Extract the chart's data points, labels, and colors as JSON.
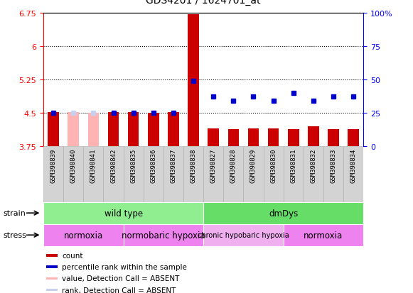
{
  "title": "GDS4201 / 1624701_at",
  "samples": [
    "GSM398839",
    "GSM398840",
    "GSM398841",
    "GSM398842",
    "GSM398835",
    "GSM398836",
    "GSM398837",
    "GSM398838",
    "GSM398827",
    "GSM398828",
    "GSM398829",
    "GSM398830",
    "GSM398831",
    "GSM398832",
    "GSM398833",
    "GSM398834"
  ],
  "count_values": [
    4.52,
    4.51,
    4.5,
    4.52,
    4.51,
    4.5,
    4.52,
    6.72,
    4.15,
    4.13,
    4.15,
    4.15,
    4.14,
    4.19,
    4.14,
    4.14
  ],
  "percentile_values": [
    25,
    25,
    25,
    25,
    25,
    25,
    25,
    49,
    37,
    34,
    37,
    34,
    40,
    34,
    37,
    37
  ],
  "absent_mask": [
    false,
    true,
    true,
    false,
    false,
    false,
    false,
    false,
    false,
    false,
    false,
    false,
    false,
    false,
    false,
    false
  ],
  "ylim_left": [
    3.75,
    6.75
  ],
  "ylim_right": [
    0,
    100
  ],
  "yticks_left": [
    3.75,
    4.5,
    5.25,
    6.0,
    6.75
  ],
  "yticks_right": [
    0,
    25,
    50,
    75,
    100
  ],
  "ytick_labels_left": [
    "3.75",
    "4.5",
    "5.25",
    "6",
    "6.75"
  ],
  "ytick_labels_right": [
    "0",
    "25",
    "50",
    "75",
    "100%"
  ],
  "hlines": [
    4.5,
    5.25,
    6.0
  ],
  "bar_color_present": "#cc0000",
  "bar_color_absent_count": "#ffb3b3",
  "bar_color_absent_rank": "#c8d0f0",
  "dot_color": "#0000cc",
  "strain_groups": [
    {
      "label": "wild type",
      "start": 0,
      "end": 7,
      "color": "#90ee90"
    },
    {
      "label": "dmDys",
      "start": 8,
      "end": 15,
      "color": "#66dd66"
    }
  ],
  "stress_groups": [
    {
      "label": "normoxia",
      "start": 0,
      "end": 3,
      "color": "#ee82ee"
    },
    {
      "label": "normobaric hypoxia",
      "start": 4,
      "end": 7,
      "color": "#ee82ee"
    },
    {
      "label": "chronic hypobaric hypoxia",
      "start": 8,
      "end": 11,
      "color": "#f0b0f0"
    },
    {
      "label": "normoxia",
      "start": 12,
      "end": 15,
      "color": "#ee82ee"
    }
  ],
  "legend_items": [
    {
      "label": "count",
      "color": "#cc0000"
    },
    {
      "label": "percentile rank within the sample",
      "color": "#0000cc"
    },
    {
      "label": "value, Detection Call = ABSENT",
      "color": "#ffb3b3"
    },
    {
      "label": "rank, Detection Call = ABSENT",
      "color": "#c8d0f0"
    }
  ],
  "bar_width": 0.55,
  "baseline": 3.75,
  "sample_box_color": "#d3d3d3",
  "sample_box_edge": "#aaaaaa"
}
